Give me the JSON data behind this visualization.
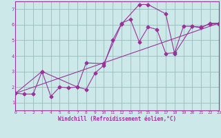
{
  "xlabel": "Windchill (Refroidissement éolien,°C)",
  "xlim": [
    0,
    23
  ],
  "ylim": [
    0.5,
    7.5
  ],
  "xticks": [
    0,
    1,
    2,
    3,
    4,
    5,
    6,
    7,
    8,
    9,
    10,
    11,
    12,
    13,
    14,
    15,
    16,
    17,
    18,
    19,
    20,
    21,
    22,
    23
  ],
  "yticks": [
    1,
    2,
    3,
    4,
    5,
    6,
    7
  ],
  "bg_color": "#cce8e8",
  "line_color": "#993399",
  "grid_color": "#99bbbb",
  "spine_color": "#993399",
  "line1_x": [
    0,
    1,
    2,
    3,
    4,
    5,
    6,
    7,
    8,
    9,
    10,
    11,
    12,
    13,
    14,
    15,
    16,
    17,
    18,
    19,
    20,
    21,
    22,
    23
  ],
  "line1_y": [
    1.6,
    1.55,
    1.55,
    3.0,
    1.4,
    2.0,
    1.95,
    2.0,
    1.85,
    2.9,
    3.4,
    5.0,
    6.1,
    6.35,
    4.9,
    5.85,
    5.7,
    4.15,
    4.2,
    5.9,
    5.9,
    5.8,
    6.1,
    6.1
  ],
  "line2_x": [
    0,
    3,
    7,
    8,
    10,
    12,
    14,
    15,
    17,
    18,
    20,
    21,
    22,
    23
  ],
  "line2_y": [
    1.6,
    3.0,
    2.0,
    3.55,
    3.5,
    6.05,
    7.3,
    7.3,
    6.7,
    4.15,
    5.9,
    5.85,
    6.05,
    6.05
  ],
  "line3_x": [
    0,
    23
  ],
  "line3_y": [
    1.6,
    6.1
  ],
  "markersize": 2.5,
  "linewidth": 0.8,
  "tick_fontsize": 4.5,
  "xlabel_fontsize": 5.5
}
